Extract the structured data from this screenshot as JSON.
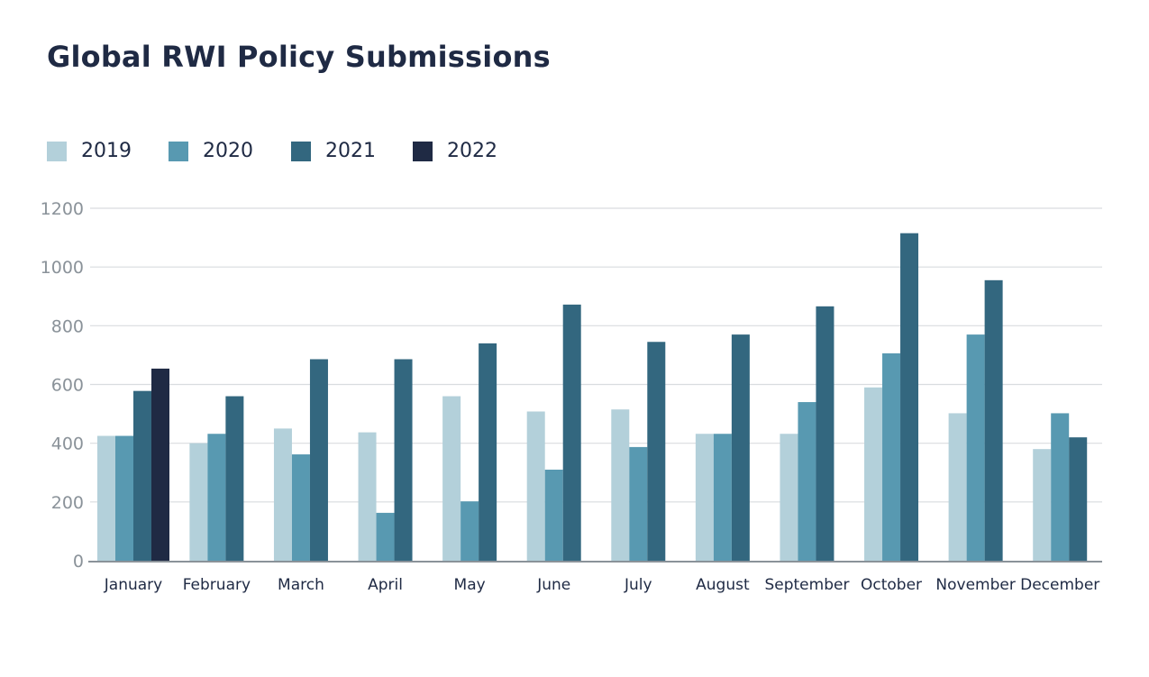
{
  "chart_data": {
    "type": "bar",
    "title": "Global RWI Policy Submissions",
    "xlabel": "",
    "ylabel": "",
    "ylim": [
      0,
      1200
    ],
    "yticks": [
      0,
      200,
      400,
      600,
      800,
      1000,
      1200
    ],
    "grid": true,
    "legend_position": "top-left",
    "categories": [
      "January",
      "February",
      "March",
      "April",
      "May",
      "June",
      "July",
      "August",
      "September",
      "October",
      "November",
      "December"
    ],
    "series": [
      {
        "name": "2019",
        "color": "#b3d0da",
        "values": [
          425,
          400,
          450,
          437,
          560,
          508,
          515,
          432,
          432,
          590,
          502,
          380
        ]
      },
      {
        "name": "2020",
        "color": "#5899b1",
        "values": [
          425,
          432,
          362,
          163,
          202,
          310,
          387,
          432,
          540,
          706,
          770,
          502
        ]
      },
      {
        "name": "2021",
        "color": "#33677f",
        "values": [
          578,
          560,
          686,
          686,
          740,
          872,
          745,
          770,
          866,
          1115,
          955,
          420
        ]
      },
      {
        "name": "2022",
        "color": "#1f2a44",
        "values": [
          654,
          null,
          null,
          null,
          null,
          null,
          null,
          null,
          null,
          null,
          null,
          null
        ]
      }
    ]
  }
}
